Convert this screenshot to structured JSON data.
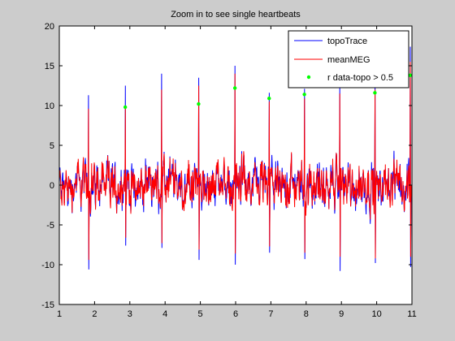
{
  "chart_data": {
    "type": "line",
    "title": "Zoom in to see single heartbeats",
    "xlabel": "",
    "ylabel": "",
    "xlim": [
      1,
      11
    ],
    "ylim": [
      -15,
      20
    ],
    "xticks": [
      1,
      2,
      3,
      4,
      5,
      6,
      7,
      8,
      9,
      10,
      11
    ],
    "yticks": [
      -15,
      -10,
      -5,
      0,
      5,
      10,
      15,
      20
    ],
    "grid": false,
    "legend_position": "top-right",
    "beats": [
      {
        "t": 1.83,
        "topo_peak": 11.3,
        "meg_peak": 9.6,
        "topo_trough": -10.6,
        "meg_trough": -9.4
      },
      {
        "t": 2.87,
        "topo_peak": 12.5,
        "meg_peak": 10.0,
        "topo_trough": -7.6,
        "meg_trough": -6.6
      },
      {
        "t": 3.9,
        "topo_peak": 14.0,
        "meg_peak": 12.0,
        "topo_trough": -7.9,
        "meg_trough": -7.3
      },
      {
        "t": 4.95,
        "topo_peak": 13.5,
        "meg_peak": 12.5,
        "topo_trough": -9.4,
        "meg_trough": -8.1
      },
      {
        "t": 5.98,
        "topo_peak": 15.0,
        "meg_peak": 14.0,
        "topo_trough": -10.0,
        "meg_trough": -8.6
      },
      {
        "t": 6.95,
        "topo_peak": 11.6,
        "meg_peak": 10.5,
        "topo_trough": -8.5,
        "meg_trough": -7.7
      },
      {
        "t": 7.95,
        "topo_peak": 12.1,
        "meg_peak": 10.9,
        "topo_trough": -9.3,
        "meg_trough": -8.5
      },
      {
        "t": 8.95,
        "topo_peak": 12.5,
        "meg_peak": 11.5,
        "topo_trough": -10.8,
        "meg_trough": -9.0
      },
      {
        "t": 9.95,
        "topo_peak": 13.0,
        "meg_peak": 12.0,
        "topo_trough": -9.8,
        "meg_trough": -9.2
      },
      {
        "t": 10.95,
        "topo_peak": 17.4,
        "meg_peak": 15.5,
        "topo_trough": -10.3,
        "meg_trough": -9.0
      }
    ],
    "series": [
      {
        "name": "topoTrace",
        "color": "#0000ff",
        "style": "line"
      },
      {
        "name": "meanMEG",
        "color": "#ff0000",
        "style": "line"
      },
      {
        "name": "r data-topo > 0.5",
        "color": "#00ff00",
        "style": "marker",
        "x": [
          2.87,
          4.95,
          5.98,
          6.95,
          7.95,
          9.95,
          10.95
        ],
        "y": [
          9.8,
          10.2,
          12.2,
          10.9,
          11.4,
          11.6,
          13.8
        ]
      }
    ]
  }
}
